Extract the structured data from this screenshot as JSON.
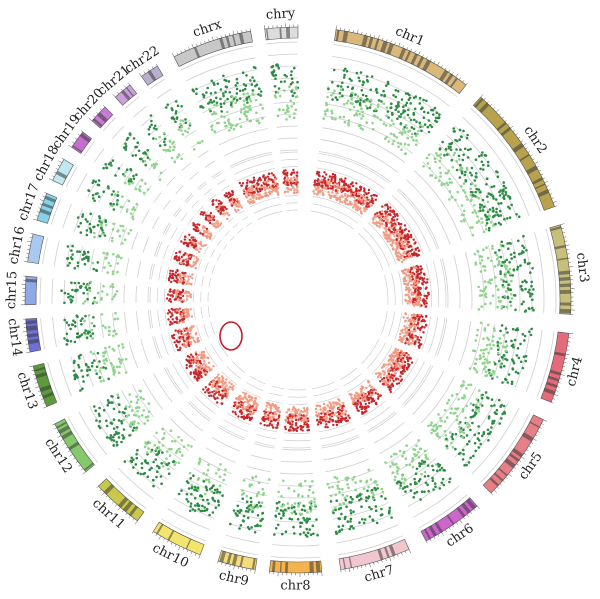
{
  "chromosomes": [
    {
      "label": "chr1",
      "color": "#d9b87a"
    },
    {
      "label": "chr2",
      "color": "#b8a24e"
    },
    {
      "label": "chr3",
      "color": "#c8c07a"
    },
    {
      "label": "chr4",
      "color": "#e46b7a"
    },
    {
      "label": "chr5",
      "color": "#e67f86"
    },
    {
      "label": "chr6",
      "color": "#cc66cc"
    },
    {
      "label": "chr7",
      "color": "#f1c6cf"
    },
    {
      "label": "chr8",
      "color": "#f3b44f"
    },
    {
      "label": "chr9",
      "color": "#f4dc7a"
    },
    {
      "label": "chr10",
      "color": "#f3e46e"
    },
    {
      "label": "chr11",
      "color": "#c9c84a"
    },
    {
      "label": "chr12",
      "color": "#84c96a"
    },
    {
      "label": "chr13",
      "color": "#5c9a3c"
    },
    {
      "label": "chr14",
      "color": "#6f6fd6"
    },
    {
      "label": "chr15",
      "color": "#8fa9e6"
    },
    {
      "label": "chr16",
      "color": "#a9c9f0"
    },
    {
      "label": "chr17",
      "color": "#86d2e6"
    },
    {
      "label": "chr18",
      "color": "#bfe8f0"
    },
    {
      "label": "chr19",
      "color": "#c46fd0"
    },
    {
      "label": "chr20",
      "color": "#c77ad6"
    },
    {
      "label": "chr21",
      "color": "#c9a0dc"
    },
    {
      "label": "chr22",
      "color": "#b9b0cc"
    },
    {
      "label": "chrx",
      "color": "#c8c8c8"
    },
    {
      "label": "chry",
      "color": "#dcdcdc"
    }
  ],
  "colors": {
    "outer_dark": "#2e8b45",
    "outer_light": "#8fd48c",
    "inner_dark": "#c8262b",
    "inner_light": "#f29a82",
    "grid": "#cfcfcf",
    "highlight": "#c41e2a"
  }
}
